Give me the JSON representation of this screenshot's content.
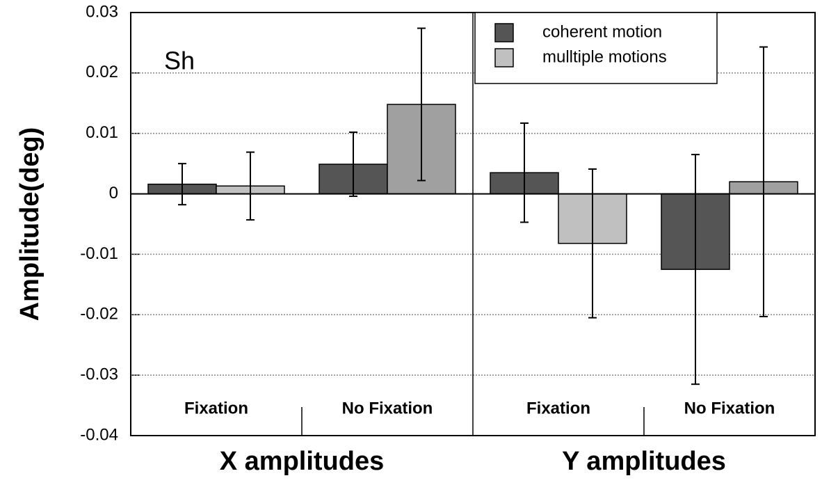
{
  "chart_data": {
    "type": "bar",
    "y_label": "Amplitude(deg)",
    "annotation": "Sh",
    "categories": [
      "Fixation",
      "No Fixation",
      "Fixation",
      "No Fixation"
    ],
    "groups": [
      "X amplitudes",
      "Y amplitudes"
    ],
    "series": [
      {
        "name": "coherent motion",
        "color": "#555555",
        "colors": [
          "#555555",
          "#555555",
          "#555555",
          "#555555"
        ],
        "values": [
          0.0016,
          0.0049,
          0.0035,
          -0.0125
        ],
        "errors": [
          0.0034,
          0.0053,
          0.0082,
          0.019
        ]
      },
      {
        "name": "mulltiple motions",
        "color": "#c0c0c0",
        "colors": [
          "#c0c0c0",
          "#a0a0a0",
          "#c0c0c0",
          "#a0a0a0"
        ],
        "values": [
          0.0013,
          0.0148,
          -0.0082,
          0.002
        ],
        "errors": [
          0.0056,
          0.0126,
          0.0123,
          0.0223
        ]
      }
    ],
    "ylim": [
      -0.04,
      0.03
    ],
    "yticks": [
      -0.04,
      -0.03,
      -0.02,
      -0.01,
      0,
      0.01,
      0.02,
      0.03
    ],
    "grid": true,
    "legend": "upper right"
  }
}
